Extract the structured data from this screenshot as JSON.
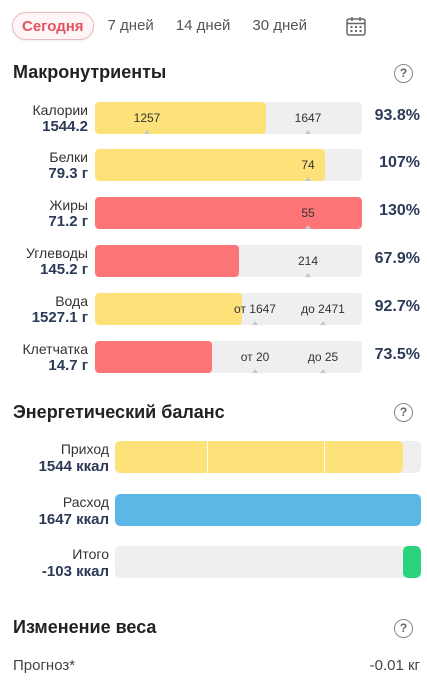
{
  "tabs": [
    {
      "label": "Сегодня",
      "active": true
    },
    {
      "label": "7 дней",
      "active": false
    },
    {
      "label": "14 дней",
      "active": false
    },
    {
      "label": "30 дней",
      "active": false
    }
  ],
  "macros": {
    "title": "Макронутриенты",
    "help": "?",
    "rows": [
      {
        "name": "Калории",
        "value": "1544.2",
        "percent": "93.8%",
        "fill_fraction": 0.64,
        "color": "#fde27a",
        "markers": [
          "1257",
          "1647"
        ]
      },
      {
        "name": "Белки",
        "value": "79.3 г",
        "percent": "107%",
        "fill_fraction": 0.86,
        "color": "#fde27a",
        "markers": [
          "74"
        ]
      },
      {
        "name": "Жиры",
        "value": "71.2 г",
        "percent": "130%",
        "fill_fraction": 1.0,
        "color": "#fe7577",
        "markers": [
          "55"
        ]
      },
      {
        "name": "Углеводы",
        "value": "145.2 г",
        "percent": "67.9%",
        "fill_fraction": 0.54,
        "color": "#fe7577",
        "markers": [
          "214"
        ]
      },
      {
        "name": "Вода",
        "value": "1527.1 г",
        "percent": "92.7%",
        "fill_fraction": 0.55,
        "color": "#fde27a",
        "markers": [
          "от 1647",
          "до 2471"
        ]
      },
      {
        "name": "Клетчатка",
        "value": "14.7 г",
        "percent": "73.5%",
        "fill_fraction": 0.44,
        "color": "#fe7577",
        "markers": [
          "от 20",
          "до 25"
        ]
      }
    ]
  },
  "energy": {
    "title": "Энергетический баланс",
    "help": "?",
    "rows": [
      {
        "label": "Приход",
        "value": "1544 ккал",
        "fill_fraction": 0.94,
        "color": "#fde27a"
      },
      {
        "label": "Расход",
        "value": "1647 ккал",
        "fill_fraction": 1.0,
        "color": "#5bb7e6"
      },
      {
        "label": "Итого",
        "value": "-103 ккал",
        "fill_fraction": 0.06,
        "color": "#2bd47c"
      }
    ]
  },
  "weight": {
    "title": "Изменение веса",
    "help": "?",
    "forecast_label": "Прогноз*",
    "forecast_value": "-0.01 кг"
  }
}
